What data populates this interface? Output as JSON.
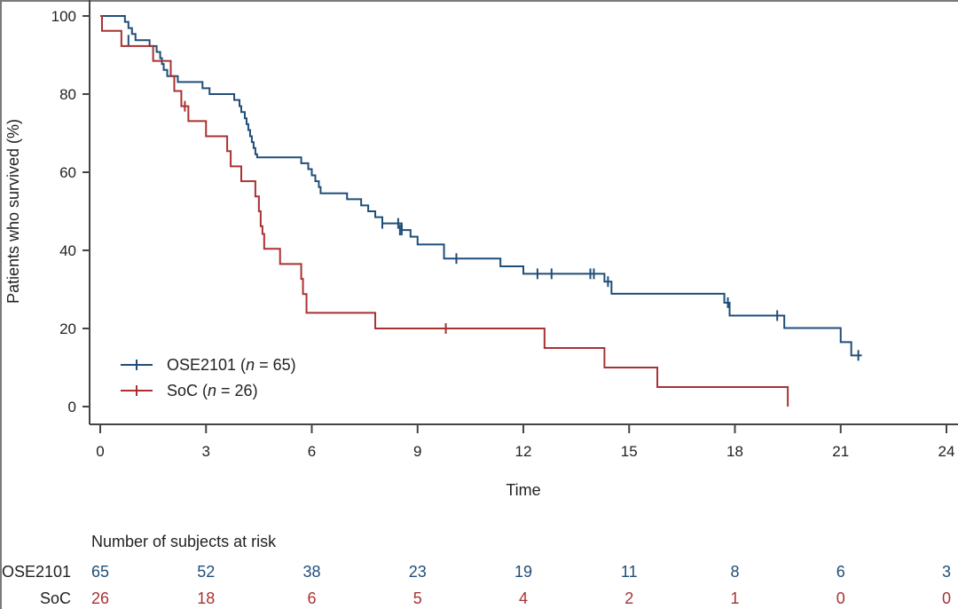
{
  "chart_data": {
    "type": "line",
    "subtype": "kaplan-meier",
    "title": "",
    "xlabel": "Time",
    "ylabel": "Patients who survived (%)",
    "xlim": [
      0,
      24
    ],
    "ylim": [
      0,
      100
    ],
    "x_ticks": [
      0,
      3,
      6,
      9,
      12,
      15,
      18,
      21,
      24
    ],
    "y_ticks": [
      0,
      20,
      40,
      60,
      80,
      100
    ],
    "grid": false,
    "legend_position": "bottom-left",
    "series": [
      {
        "name": "OSE2101",
        "legend": "OSE2101 (n = 65)",
        "legend_prefix": "OSE2101 (",
        "legend_n_symbol": "n",
        "legend_suffix": " = 65)",
        "n": 65,
        "color": "#1f4e79",
        "steps": [
          [
            0,
            100
          ],
          [
            0.7,
            98.5
          ],
          [
            0.8,
            96.9
          ],
          [
            0.9,
            95.4
          ],
          [
            1.0,
            93.8
          ],
          [
            1.4,
            92.3
          ],
          [
            1.6,
            90.8
          ],
          [
            1.7,
            89.2
          ],
          [
            1.75,
            87.7
          ],
          [
            1.8,
            86.2
          ],
          [
            1.9,
            84.6
          ],
          [
            2.2,
            83.1
          ],
          [
            2.9,
            81.5
          ],
          [
            3.1,
            80.0
          ],
          [
            3.8,
            78.5
          ],
          [
            3.95,
            76.9
          ],
          [
            4.0,
            75.4
          ],
          [
            4.1,
            73.8
          ],
          [
            4.15,
            72.3
          ],
          [
            4.2,
            70.8
          ],
          [
            4.25,
            69.2
          ],
          [
            4.3,
            67.7
          ],
          [
            4.35,
            66.2
          ],
          [
            4.4,
            64.6
          ],
          [
            4.45,
            63.8
          ],
          [
            5.7,
            62.3
          ],
          [
            5.9,
            60.8
          ],
          [
            6.0,
            59.2
          ],
          [
            6.1,
            57.7
          ],
          [
            6.2,
            56.2
          ],
          [
            6.25,
            54.6
          ],
          [
            7.0,
            53.1
          ],
          [
            7.4,
            51.5
          ],
          [
            7.6,
            50.0
          ],
          [
            7.8,
            48.5
          ],
          [
            8.0,
            46.9
          ],
          [
            8.55,
            45.2
          ],
          [
            8.8,
            43.5
          ],
          [
            9.0,
            41.5
          ],
          [
            9.75,
            37.9
          ],
          [
            11.35,
            35.9
          ],
          [
            12.0,
            34.0
          ],
          [
            14.3,
            32.0
          ],
          [
            14.5,
            28.9
          ],
          [
            17.7,
            26.6
          ],
          [
            17.85,
            23.3
          ],
          [
            19.4,
            20.1
          ],
          [
            21.0,
            16.5
          ],
          [
            21.3,
            13.1
          ],
          [
            21.6,
            13.1
          ]
        ],
        "censored": [
          [
            0.8,
            93.8
          ],
          [
            8.0,
            46.9
          ],
          [
            8.45,
            46.9
          ],
          [
            8.5,
            45.2
          ],
          [
            8.55,
            45.2
          ],
          [
            10.1,
            37.9
          ],
          [
            12.4,
            34.0
          ],
          [
            12.8,
            34.0
          ],
          [
            13.9,
            34.0
          ],
          [
            14.0,
            34.0
          ],
          [
            14.4,
            32.0
          ],
          [
            17.8,
            26.6
          ],
          [
            19.2,
            23.3
          ],
          [
            21.5,
            13.1
          ]
        ]
      },
      {
        "name": "SoC",
        "legend": "SoC (n = 26)",
        "legend_prefix": "SoC (",
        "legend_n_symbol": "n",
        "legend_suffix": " = 26)",
        "n": 26,
        "color": "#a83232",
        "steps": [
          [
            0,
            100
          ],
          [
            0.05,
            96.2
          ],
          [
            0.6,
            92.3
          ],
          [
            1.5,
            88.5
          ],
          [
            2.0,
            84.6
          ],
          [
            2.1,
            80.8
          ],
          [
            2.3,
            76.9
          ],
          [
            2.5,
            73.1
          ],
          [
            3.0,
            69.2
          ],
          [
            3.6,
            65.4
          ],
          [
            3.7,
            61.5
          ],
          [
            4.0,
            57.7
          ],
          [
            4.4,
            53.8
          ],
          [
            4.5,
            50.0
          ],
          [
            4.55,
            46.2
          ],
          [
            4.6,
            44.2
          ],
          [
            4.65,
            40.4
          ],
          [
            5.1,
            36.5
          ],
          [
            5.7,
            32.7
          ],
          [
            5.75,
            28.8
          ],
          [
            5.85,
            24.0
          ],
          [
            7.8,
            20.0
          ],
          [
            12.6,
            15.0
          ],
          [
            14.3,
            10.0
          ],
          [
            15.8,
            5.0
          ],
          [
            19.5,
            0.0
          ]
        ],
        "censored": [
          [
            2.4,
            76.9
          ],
          [
            9.8,
            20.0
          ]
        ]
      }
    ],
    "risk_table": {
      "title": "Number of subjects at risk",
      "times": [
        0,
        3,
        6,
        9,
        12,
        15,
        18,
        21,
        24
      ],
      "rows": [
        {
          "label": "OSE2101",
          "color": "#1f4e79",
          "values": [
            65,
            52,
            38,
            23,
            19,
            11,
            8,
            6,
            3
          ]
        },
        {
          "label": "SoC",
          "color": "#a83232",
          "values": [
            26,
            18,
            6,
            5,
            4,
            2,
            1,
            0,
            0
          ]
        }
      ]
    }
  }
}
